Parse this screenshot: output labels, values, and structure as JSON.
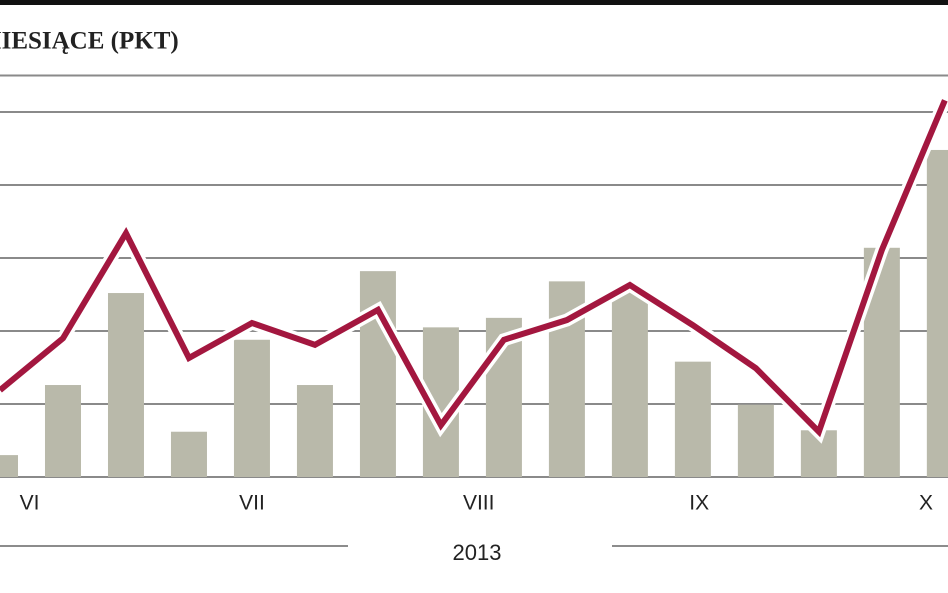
{
  "chart_data": {
    "type": "bar-line",
    "title": "MIESIĄCE (PKT)",
    "x": [
      0,
      1,
      2,
      3,
      4,
      5,
      6,
      7,
      8,
      9,
      10,
      11,
      12,
      13,
      14,
      15
    ],
    "xlim": [
      0,
      15.05
    ],
    "xticks": [
      {
        "value": 0.47,
        "label": "VI"
      },
      {
        "value": 4.0,
        "label": "VII"
      },
      {
        "value": 7.6,
        "label": "VIII"
      },
      {
        "value": 11.1,
        "label": "IX"
      },
      {
        "value": 14.7,
        "label": "X"
      }
    ],
    "year_label": "2013",
    "ylim": [
      0,
      5.5
    ],
    "yticks": [
      0,
      1,
      2,
      3,
      4,
      5
    ],
    "grid": true,
    "series": [
      {
        "kind": "bar",
        "color": "#b9b9aa",
        "values": [
          0.3,
          1.26,
          2.52,
          0.62,
          1.88,
          1.26,
          2.82,
          2.05,
          2.18,
          2.68,
          2.56,
          1.58,
          0.99,
          0.64,
          3.14,
          4.48
        ]
      },
      {
        "kind": "line",
        "color": "#a3173f",
        "values": [
          1.19,
          1.9,
          3.34,
          1.63,
          2.11,
          1.81,
          2.29,
          0.71,
          1.88,
          2.15,
          2.63,
          2.08,
          1.49,
          0.62,
          3.11,
          5.16
        ]
      }
    ]
  }
}
